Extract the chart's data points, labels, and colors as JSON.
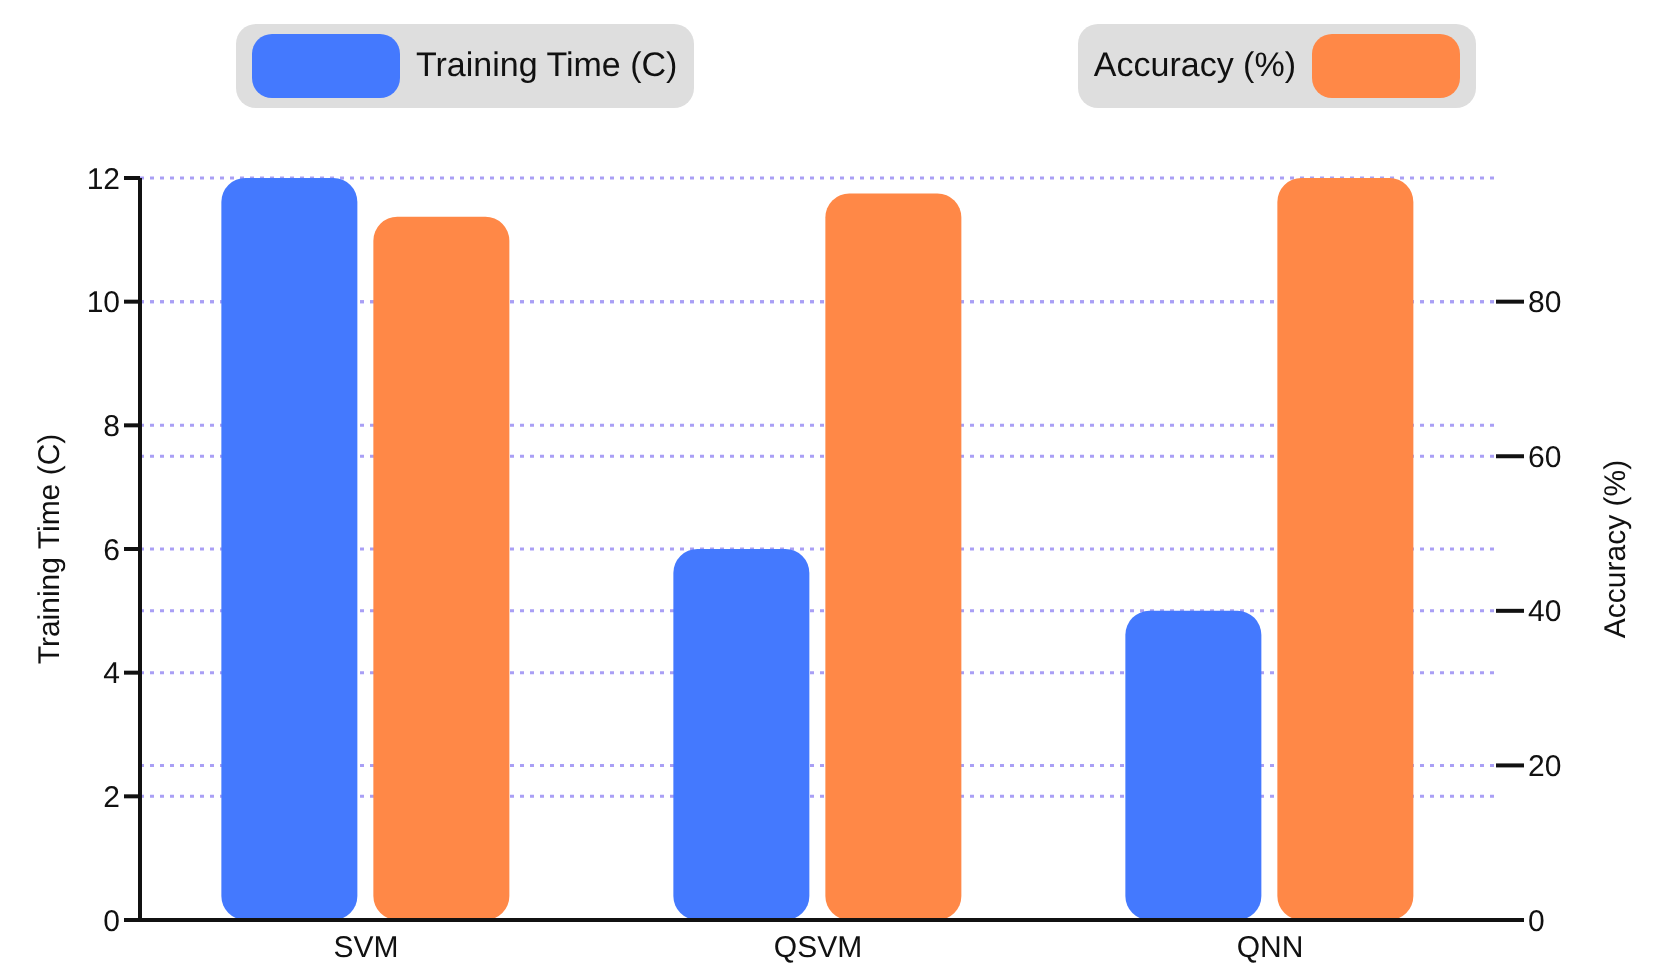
{
  "chart_data": {
    "type": "bar",
    "categories": [
      "SVM",
      "QSVM",
      "QNN"
    ],
    "series": [
      {
        "name": "Training Time (C)",
        "color": "#4479fe",
        "values": [
          12,
          6,
          5
        ]
      },
      {
        "name": "Accuracy (%)",
        "color": "#ff8847",
        "values": [
          91,
          94,
          96
        ],
        "axis": "y2"
      }
    ],
    "ylabel": "Training Time (C)",
    "y2label": "Accuracy (%)",
    "ylim": [
      0,
      12
    ],
    "yticks": [
      0,
      2,
      4,
      6,
      8,
      10,
      12
    ],
    "y2lim": [
      0,
      96
    ],
    "y2ticks": [
      0,
      20,
      40,
      60,
      80
    ],
    "grid": true,
    "legend": "top"
  }
}
